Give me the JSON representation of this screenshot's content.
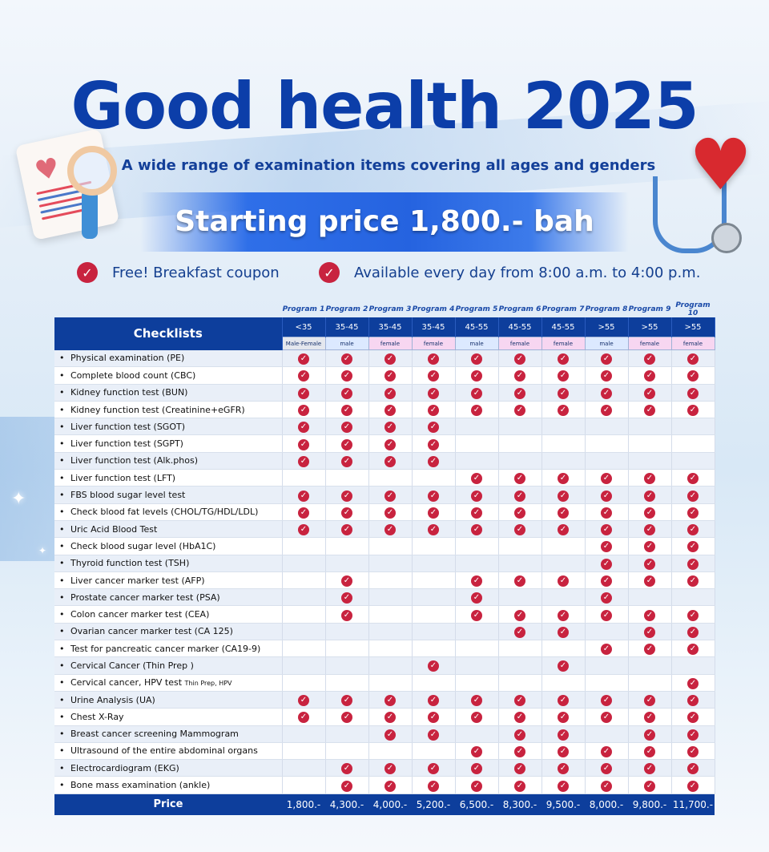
{
  "title": "Good health 2025",
  "subtitle": "A wide range of examination items covering all ages and genders",
  "price_banner": "Starting price 1,800.- bah",
  "features": [
    {
      "text": "Free! Breakfast coupon",
      "icon": "check-circle-icon"
    },
    {
      "text": "Available every day from 8:00 a.m. to 4:00 p.m.",
      "icon": "check-circle-icon"
    }
  ],
  "colors": {
    "title": "#0c3ea9",
    "header_bg": "#0d3e9c",
    "check": "#c8233f",
    "male_bg": "#dce9ff",
    "female_bg": "#f7d6f1"
  },
  "table": {
    "checklists_header": "Checklists",
    "programs": [
      {
        "name": "Program 1",
        "age": "<35",
        "gender": "Male-Female",
        "gkind": "mf",
        "price": "1,800.-"
      },
      {
        "name": "Program 2",
        "age": "35-45",
        "gender": "male",
        "gkind": "m",
        "price": "4,300.-"
      },
      {
        "name": "Program 3",
        "age": "35-45",
        "gender": "female",
        "gkind": "f",
        "price": "4,000.-"
      },
      {
        "name": "Program 4",
        "age": "35-45",
        "gender": "female",
        "gkind": "f",
        "price": "5,200.-"
      },
      {
        "name": "Program 5",
        "age": "45-55",
        "gender": "male",
        "gkind": "m",
        "price": "6,500.-"
      },
      {
        "name": "Program 6",
        "age": "45-55",
        "gender": "female",
        "gkind": "f",
        "price": "8,300.-"
      },
      {
        "name": "Program 7",
        "age": "45-55",
        "gender": "female",
        "gkind": "f",
        "price": "9,500.-"
      },
      {
        "name": "Program 8",
        "age": ">55",
        "gender": "male",
        "gkind": "m",
        "price": "8,000.-"
      },
      {
        "name": "Program 9",
        "age": ">55",
        "gender": "female",
        "gkind": "f",
        "price": "9,800.-"
      },
      {
        "name": "Program 10",
        "age": ">55",
        "gender": "female",
        "gkind": "f",
        "price": "11,700.-"
      }
    ],
    "price_label": "Price",
    "items": [
      {
        "label": "Physical examination (PE)",
        "note": "",
        "checks": [
          1,
          1,
          1,
          1,
          1,
          1,
          1,
          1,
          1,
          1
        ]
      },
      {
        "label": "Complete blood count (CBC)",
        "note": "",
        "checks": [
          1,
          1,
          1,
          1,
          1,
          1,
          1,
          1,
          1,
          1
        ]
      },
      {
        "label": "Kidney function test (BUN)",
        "note": "",
        "checks": [
          1,
          1,
          1,
          1,
          1,
          1,
          1,
          1,
          1,
          1
        ]
      },
      {
        "label": "Kidney function test (Creatinine+eGFR)",
        "note": "",
        "checks": [
          1,
          1,
          1,
          1,
          1,
          1,
          1,
          1,
          1,
          1
        ]
      },
      {
        "label": "Liver function test (SGOT)",
        "note": "",
        "checks": [
          1,
          1,
          1,
          1,
          0,
          0,
          0,
          0,
          0,
          0
        ]
      },
      {
        "label": "Liver function test (SGPT)",
        "note": "",
        "checks": [
          1,
          1,
          1,
          1,
          0,
          0,
          0,
          0,
          0,
          0
        ]
      },
      {
        "label": "Liver function test (Alk.phos)",
        "note": "",
        "checks": [
          1,
          1,
          1,
          1,
          0,
          0,
          0,
          0,
          0,
          0
        ]
      },
      {
        "label": "Liver function test (LFT)",
        "note": "",
        "checks": [
          0,
          0,
          0,
          0,
          1,
          1,
          1,
          1,
          1,
          1
        ]
      },
      {
        "label": "FBS blood sugar level test",
        "note": "",
        "checks": [
          1,
          1,
          1,
          1,
          1,
          1,
          1,
          1,
          1,
          1
        ]
      },
      {
        "label": "Check blood fat levels (CHOL/TG/HDL/LDL)",
        "note": "",
        "checks": [
          1,
          1,
          1,
          1,
          1,
          1,
          1,
          1,
          1,
          1
        ]
      },
      {
        "label": "Uric Acid Blood Test",
        "note": "",
        "checks": [
          1,
          1,
          1,
          1,
          1,
          1,
          1,
          1,
          1,
          1
        ]
      },
      {
        "label": "Check blood sugar level (HbA1C)",
        "note": "",
        "checks": [
          0,
          0,
          0,
          0,
          0,
          0,
          0,
          1,
          1,
          1
        ]
      },
      {
        "label": "Thyroid function test (TSH)",
        "note": "",
        "checks": [
          0,
          0,
          0,
          0,
          0,
          0,
          0,
          1,
          1,
          1
        ]
      },
      {
        "label": "Liver cancer marker test (AFP)",
        "note": "",
        "checks": [
          0,
          1,
          0,
          0,
          1,
          1,
          1,
          1,
          1,
          1
        ]
      },
      {
        "label": "Prostate cancer marker test (PSA)",
        "note": "",
        "checks": [
          0,
          1,
          0,
          0,
          1,
          0,
          0,
          1,
          0,
          0
        ]
      },
      {
        "label": "Colon cancer marker test (CEA)",
        "note": "",
        "checks": [
          0,
          1,
          0,
          0,
          1,
          1,
          1,
          1,
          1,
          1
        ]
      },
      {
        "label": "Ovarian cancer marker test (CA 125)",
        "note": "",
        "checks": [
          0,
          0,
          0,
          0,
          0,
          1,
          1,
          0,
          1,
          1
        ]
      },
      {
        "label": "Test for pancreatic cancer marker (CA19-9)",
        "note": "",
        "checks": [
          0,
          0,
          0,
          0,
          0,
          0,
          0,
          1,
          1,
          1
        ]
      },
      {
        "label": "Cervical Cancer (Thin Prep )",
        "note": "",
        "checks": [
          0,
          0,
          0,
          1,
          0,
          0,
          1,
          0,
          0,
          0
        ]
      },
      {
        "label": "Cervical cancer, HPV test",
        "note": "Thin Prep, HPV",
        "checks": [
          0,
          0,
          0,
          0,
          0,
          0,
          0,
          0,
          0,
          1
        ]
      },
      {
        "label": "Urine Analysis (UA)",
        "note": "",
        "checks": [
          1,
          1,
          1,
          1,
          1,
          1,
          1,
          1,
          1,
          1
        ]
      },
      {
        "label": "Chest X-Ray",
        "note": "",
        "checks": [
          1,
          1,
          1,
          1,
          1,
          1,
          1,
          1,
          1,
          1
        ]
      },
      {
        "label": "Breast cancer screening Mammogram",
        "note": "",
        "checks": [
          0,
          0,
          1,
          1,
          0,
          1,
          1,
          0,
          1,
          1
        ]
      },
      {
        "label": "Ultrasound of the entire abdominal organs",
        "note": "",
        "checks": [
          0,
          0,
          0,
          0,
          1,
          1,
          1,
          1,
          1,
          1
        ]
      },
      {
        "label": "Electrocardiogram (EKG)",
        "note": "",
        "checks": [
          0,
          1,
          1,
          1,
          1,
          1,
          1,
          1,
          1,
          1
        ]
      },
      {
        "label": "Bone mass examination (ankle)",
        "note": "",
        "checks": [
          0,
          1,
          1,
          1,
          1,
          1,
          1,
          1,
          1,
          1
        ]
      }
    ]
  }
}
